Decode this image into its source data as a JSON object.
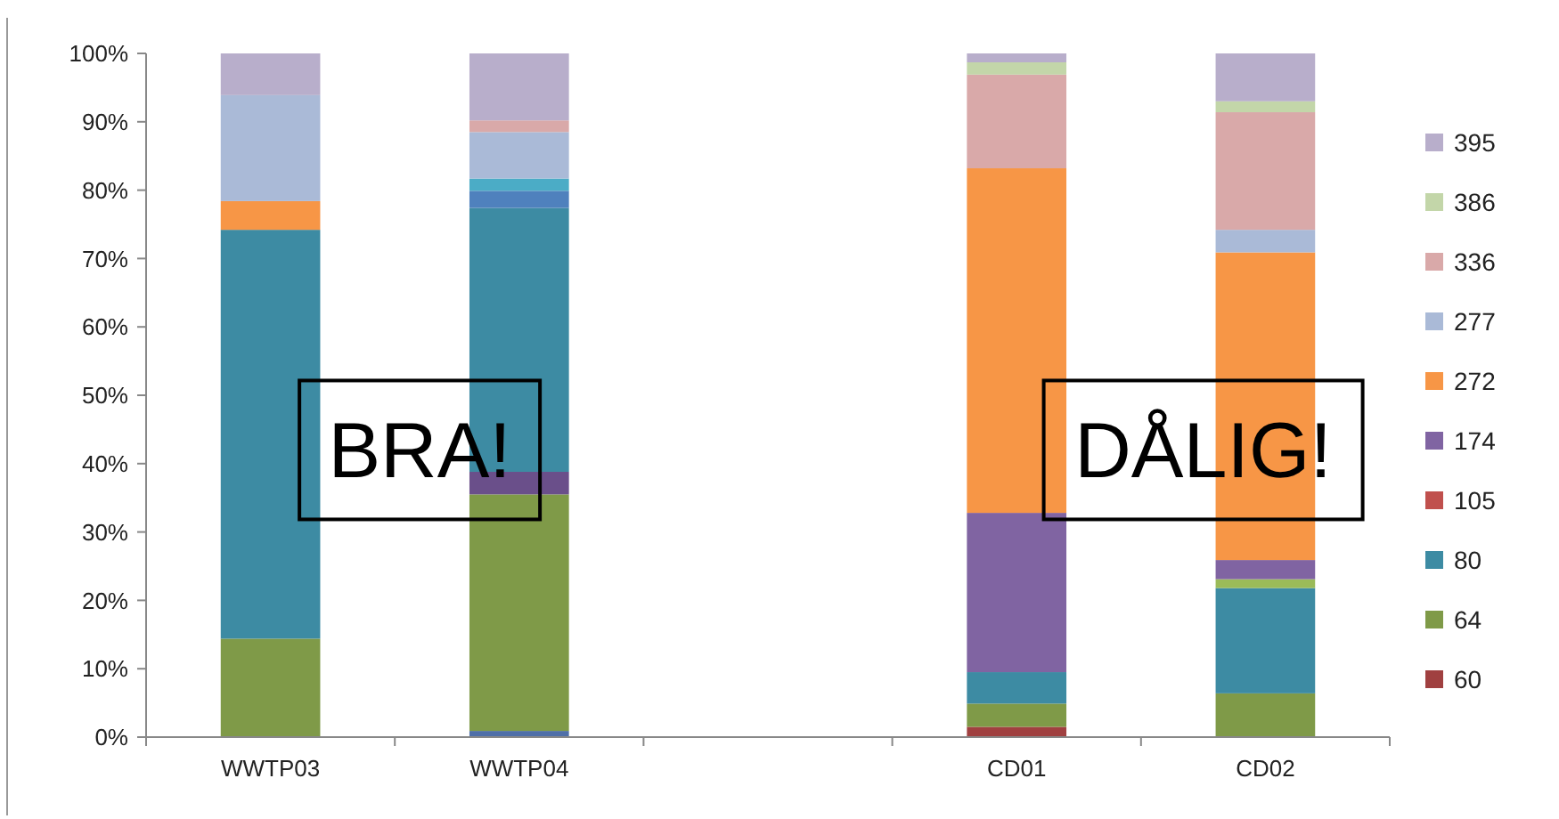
{
  "chart_data": {
    "type": "bar",
    "stacked": true,
    "categories": [
      "WWTP03",
      "WWTP04",
      null,
      "CD01",
      "CD02"
    ],
    "series": [
      {
        "color": "#4f6fa8",
        "values": [
          null,
          0.9,
          null,
          null,
          null
        ]
      },
      {
        "name": "60",
        "color": "#a04040",
        "values": [
          null,
          null,
          null,
          1.5,
          null
        ]
      },
      {
        "name": "64",
        "color": "#7f9a48",
        "values": [
          14.4,
          34.6,
          null,
          3.4,
          6.4
        ]
      },
      {
        "color": "#6a4f8a",
        "values": [
          null,
          3.3,
          null,
          null,
          null
        ]
      },
      {
        "name": "80",
        "color": "#3d8ba3",
        "values": [
          59.8,
          38.6,
          null,
          4.6,
          15.4
        ]
      },
      {
        "color": "#9bbb59",
        "values": [
          null,
          null,
          null,
          null,
          1.3
        ]
      },
      {
        "name": "105",
        "color": "#c0504d",
        "values": [
          null,
          null,
          null,
          null,
          null
        ]
      },
      {
        "name": "174",
        "color": "#8064a2",
        "values": [
          null,
          null,
          null,
          23.3,
          2.8
        ]
      },
      {
        "color": "#4f81bd",
        "values": [
          null,
          2.5,
          null,
          null,
          null
        ]
      },
      {
        "color": "#4bacc6",
        "values": [
          null,
          1.8,
          null,
          null,
          null
        ]
      },
      {
        "name": "272",
        "color": "#f79646",
        "values": [
          4.2,
          null,
          null,
          50.4,
          45.0
        ]
      },
      {
        "name": "277",
        "color": "#aabad7",
        "values": [
          15.5,
          6.8,
          null,
          null,
          3.3
        ]
      },
      {
        "name": "336",
        "color": "#d9a9a9",
        "values": [
          null,
          1.7,
          null,
          13.7,
          17.2
        ]
      },
      {
        "name": "386",
        "color": "#c3d6a9",
        "values": [
          null,
          null,
          null,
          1.8,
          1.6
        ]
      },
      {
        "name": "395",
        "color": "#b8aecb",
        "values": [
          6.1,
          9.8,
          null,
          1.3,
          7.0
        ]
      }
    ],
    "ylim": [
      0,
      100
    ],
    "yticks": [
      {
        "value": 0,
        "label": "0%"
      },
      {
        "value": 10,
        "label": "10%"
      },
      {
        "value": 20,
        "label": "20%"
      },
      {
        "value": 30,
        "label": "30%"
      },
      {
        "value": 40,
        "label": "40%"
      },
      {
        "value": 50,
        "label": "50%"
      },
      {
        "value": 60,
        "label": "60%"
      },
      {
        "value": 70,
        "label": "70%"
      },
      {
        "value": 80,
        "label": "80%"
      },
      {
        "value": 90,
        "label": "90%"
      },
      {
        "value": 100,
        "label": "100%"
      }
    ],
    "grid": false,
    "legend": "right",
    "annotations": [
      "BRA!",
      "DÅLIG!"
    ]
  }
}
